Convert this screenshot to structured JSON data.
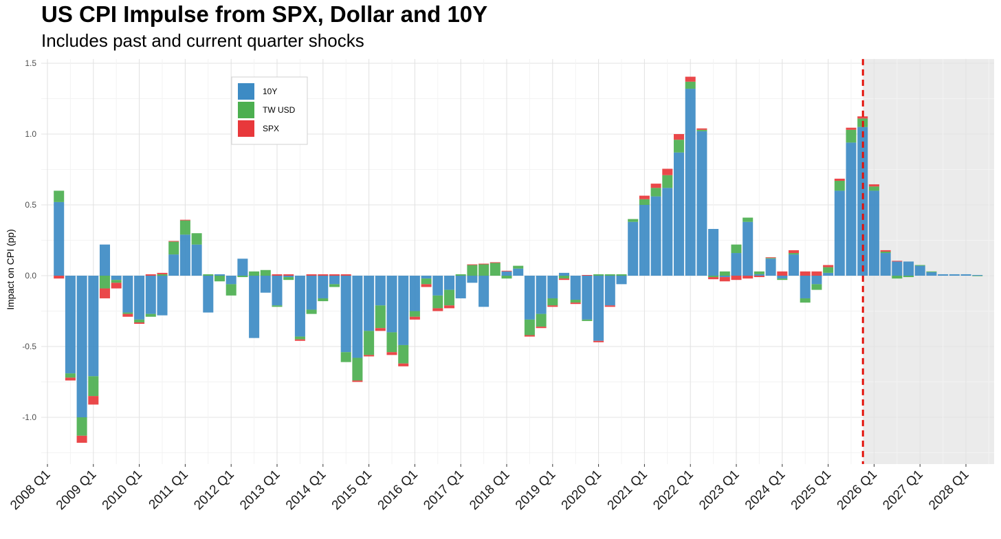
{
  "title": "US CPI Impulse from SPX, Dollar and 10Y",
  "subtitle": "Includes past and current quarter shocks",
  "colors": {
    "10Y": "#3d8bc4",
    "TW USD": "#4caf50",
    "SPX": "#e8383b",
    "forecast_line": "#e3120b",
    "forecast_shade": "#ebebeb"
  },
  "chart_data": {
    "type": "bar",
    "stacked": true,
    "title": "US CPI Impulse from SPX, Dollar and 10Y",
    "subtitle": "Includes past and current quarter shocks",
    "ylabel": "Impact on CPI (pp)",
    "xlabel": "",
    "ylim": [
      -1.33,
      1.53
    ],
    "y_ticks": [
      1.5,
      1.0,
      0.5,
      0.0,
      -0.5,
      -1.0
    ],
    "y_tick_labels": [
      "1.5",
      "1.0",
      "0.5",
      "0.0",
      "-0.5",
      "-1.0"
    ],
    "x_tick_labels": [
      "2008 Q1",
      "2009 Q1",
      "2010 Q1",
      "2011 Q1",
      "2012 Q1",
      "2013 Q1",
      "2014 Q1",
      "2015 Q1",
      "2016 Q1",
      "2017 Q1",
      "2018 Q1",
      "2019 Q1",
      "2020 Q1",
      "2021 Q1",
      "2022 Q1",
      "2023 Q1",
      "2024 Q1",
      "2025 Q1",
      "2026 Q1",
      "2027 Q1",
      "2028 Q1"
    ],
    "grid": true,
    "legend_position": "top-left",
    "forecast_start": "2025 Q4",
    "categories": [
      "2008 Q2",
      "2008 Q3",
      "2008 Q4",
      "2009 Q1",
      "2009 Q2",
      "2009 Q3",
      "2009 Q4",
      "2010 Q1",
      "2010 Q2",
      "2010 Q3",
      "2010 Q4",
      "2011 Q1",
      "2011 Q2",
      "2011 Q3",
      "2011 Q4",
      "2012 Q1",
      "2012 Q2",
      "2012 Q3",
      "2012 Q4",
      "2013 Q1",
      "2013 Q2",
      "2013 Q3",
      "2013 Q4",
      "2014 Q1",
      "2014 Q2",
      "2014 Q3",
      "2014 Q4",
      "2015 Q1",
      "2015 Q2",
      "2015 Q3",
      "2015 Q4",
      "2016 Q1",
      "2016 Q2",
      "2016 Q3",
      "2016 Q4",
      "2017 Q1",
      "2017 Q2",
      "2017 Q3",
      "2017 Q4",
      "2018 Q1",
      "2018 Q2",
      "2018 Q3",
      "2018 Q4",
      "2019 Q1",
      "2019 Q2",
      "2019 Q3",
      "2019 Q4",
      "2020 Q1",
      "2020 Q2",
      "2020 Q3",
      "2020 Q4",
      "2021 Q1",
      "2021 Q2",
      "2021 Q3",
      "2021 Q4",
      "2022 Q1",
      "2022 Q2",
      "2022 Q3",
      "2022 Q4",
      "2023 Q1",
      "2023 Q2",
      "2023 Q3",
      "2023 Q4",
      "2024 Q1",
      "2024 Q2",
      "2024 Q3",
      "2024 Q4",
      "2025 Q1",
      "2025 Q2",
      "2025 Q3",
      "2025 Q4",
      "2026 Q1",
      "2026 Q2",
      "2026 Q3",
      "2026 Q4",
      "2027 Q1",
      "2027 Q2",
      "2027 Q3",
      "2027 Q4",
      "2028 Q1",
      "2028 Q2"
    ],
    "series": [
      {
        "name": "10Y",
        "values": [
          0.52,
          -0.69,
          -1.0,
          -0.71,
          0.22,
          -0.03,
          -0.26,
          -0.31,
          -0.27,
          -0.28,
          0.15,
          0.29,
          0.22,
          -0.26,
          0.01,
          -0.06,
          0.12,
          -0.44,
          -0.12,
          -0.21,
          -0.01,
          -0.43,
          -0.24,
          -0.16,
          -0.06,
          -0.54,
          -0.58,
          -0.39,
          -0.21,
          -0.4,
          -0.49,
          -0.25,
          -0.02,
          -0.14,
          -0.1,
          -0.16,
          -0.05,
          -0.22,
          0.0,
          0.03,
          0.05,
          -0.31,
          -0.27,
          -0.16,
          0.02,
          -0.17,
          -0.31,
          -0.46,
          -0.21,
          -0.06,
          0.38,
          0.5,
          0.56,
          0.62,
          0.87,
          1.32,
          1.02,
          0.33,
          -0.01,
          0.16,
          0.38,
          0.01,
          0.12,
          -0.02,
          0.15,
          -0.16,
          -0.06,
          0.02,
          0.6,
          0.94,
          1.05,
          0.6,
          0.16,
          0.1,
          0.1,
          0.07,
          0.025,
          0.01,
          0.01,
          0.01,
          0.005
        ]
      },
      {
        "name": "TW USD",
        "values": [
          0.08,
          -0.03,
          -0.13,
          -0.14,
          -0.09,
          -0.02,
          -0.01,
          -0.02,
          -0.02,
          0.01,
          0.09,
          0.1,
          0.08,
          0.01,
          -0.04,
          -0.08,
          -0.01,
          0.03,
          0.04,
          -0.01,
          -0.02,
          -0.02,
          -0.03,
          -0.02,
          -0.02,
          -0.07,
          -0.16,
          -0.17,
          -0.16,
          -0.14,
          -0.13,
          -0.04,
          -0.04,
          -0.09,
          -0.11,
          0.01,
          0.075,
          0.08,
          0.09,
          -0.02,
          0.02,
          -0.11,
          -0.09,
          -0.05,
          -0.02,
          -0.02,
          -0.01,
          0.01,
          0.01,
          0.01,
          0.02,
          0.04,
          0.06,
          0.09,
          0.09,
          0.05,
          0.01,
          -0.01,
          0.03,
          0.06,
          0.03,
          0.02,
          0.005,
          -0.01,
          0.01,
          -0.03,
          -0.04,
          0.04,
          0.07,
          0.09,
          0.06,
          0.03,
          0.01,
          -0.02,
          -0.01,
          0.005,
          0.005,
          0.0,
          0.0,
          0.0,
          -0.003
        ]
      },
      {
        "name": "SPX",
        "values": [
          -0.02,
          -0.02,
          -0.05,
          -0.06,
          -0.07,
          -0.04,
          -0.02,
          -0.01,
          0.01,
          0.01,
          0.005,
          0.005,
          0.0,
          0.0,
          0.0,
          0.0,
          0.0,
          0.0,
          0.0,
          0.01,
          0.01,
          -0.01,
          0.01,
          0.01,
          0.01,
          0.01,
          -0.01,
          -0.01,
          -0.02,
          -0.02,
          -0.02,
          -0.02,
          -0.02,
          -0.02,
          -0.02,
          0.0,
          0.005,
          0.005,
          0.005,
          0.005,
          0.0,
          -0.01,
          -0.01,
          -0.01,
          -0.01,
          -0.01,
          0.005,
          -0.01,
          -0.01,
          0.0,
          0.0,
          0.025,
          0.03,
          0.045,
          0.04,
          0.035,
          0.01,
          -0.015,
          -0.03,
          -0.03,
          -0.02,
          -0.01,
          0.005,
          0.03,
          0.02,
          0.03,
          0.03,
          0.015,
          0.015,
          0.015,
          0.015,
          0.015,
          0.01,
          0.005,
          0.0,
          0.0,
          0.0,
          0.0,
          0.0,
          0.0,
          0.0
        ]
      }
    ]
  }
}
